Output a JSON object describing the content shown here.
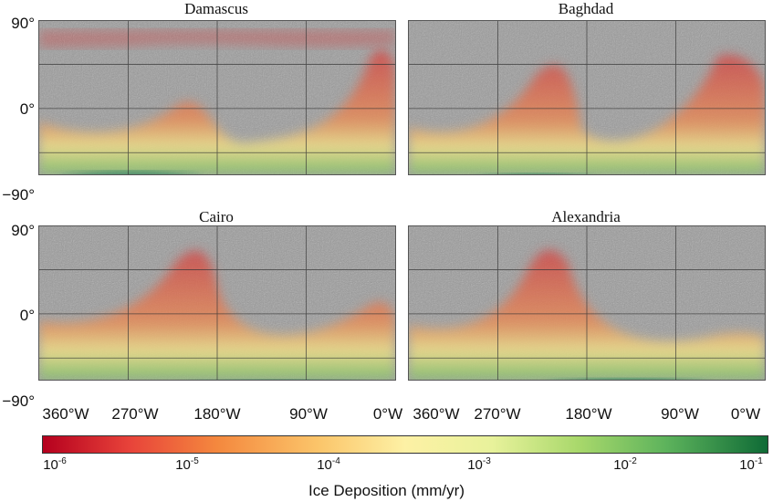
{
  "panels": [
    {
      "title": "Damascus"
    },
    {
      "title": "Baghdad"
    },
    {
      "title": "Cairo"
    },
    {
      "title": "Alexandria"
    }
  ],
  "lat_ticks": [
    "90°",
    "0°",
    "−90°"
  ],
  "lon_ticks": [
    "360°W",
    "270°W",
    "180°W",
    "90°W",
    "0°W"
  ],
  "colorbar": {
    "label": "Ice Deposition (mm/yr)",
    "ticks": [
      {
        "base": "10",
        "exp": "-6"
      },
      {
        "base": "10",
        "exp": "-5"
      },
      {
        "base": "10",
        "exp": "-4"
      },
      {
        "base": "10",
        "exp": "-3"
      },
      {
        "base": "10",
        "exp": "-2"
      },
      {
        "base": "10",
        "exp": "-1"
      }
    ],
    "colors": [
      "#b5001e",
      "#f4883e",
      "#fdf1a5",
      "#a8d86b",
      "#0f6b36"
    ]
  }
}
